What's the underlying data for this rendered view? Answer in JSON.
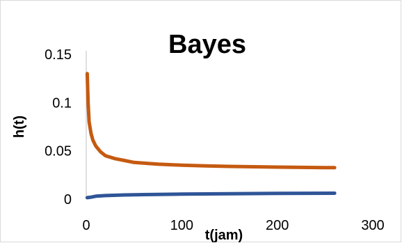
{
  "chart_data": {
    "type": "line",
    "title": "Bayes",
    "xlabel": "t(jam)",
    "ylabel": "h(t)",
    "xlim": [
      0,
      300
    ],
    "ylim": [
      0,
      0.15
    ],
    "x_ticks": [
      "0",
      "100",
      "200",
      "300"
    ],
    "y_ticks": [
      "0",
      "0.05",
      "0.1",
      "0.15"
    ],
    "grid": false,
    "legend": "none",
    "series": [
      {
        "color": "#c55a11",
        "x": [
          1,
          2,
          3,
          5,
          7,
          10,
          15,
          20,
          30,
          40,
          50,
          75,
          100,
          125,
          150,
          175,
          200,
          225,
          250,
          260
        ],
        "y": [
          0.13,
          0.1,
          0.08,
          0.068,
          0.061,
          0.055,
          0.049,
          0.045,
          0.042,
          0.04,
          0.038,
          0.0362,
          0.0352,
          0.0345,
          0.0339,
          0.0335,
          0.0332,
          0.0329,
          0.0327,
          0.0326
        ]
      },
      {
        "color": "#2f5597",
        "x": [
          1,
          5,
          10,
          20,
          40,
          60,
          100,
          150,
          200,
          260
        ],
        "y": [
          0.0015,
          0.002,
          0.003,
          0.0037,
          0.0043,
          0.0047,
          0.0052,
          0.0056,
          0.0059,
          0.0061
        ]
      }
    ]
  }
}
